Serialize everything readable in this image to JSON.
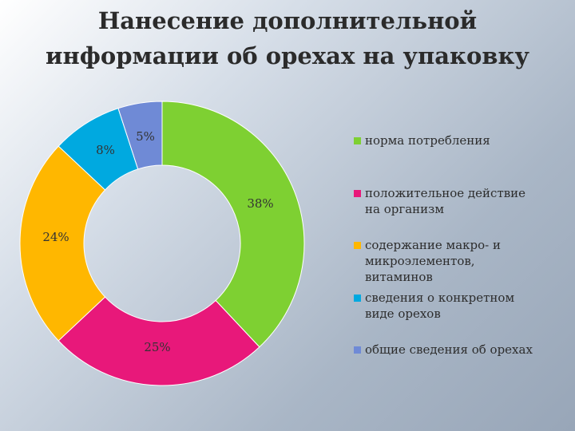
{
  "title": "Нанесение дополнительной\nинформации об орехах на упаковку",
  "chart_data": {
    "type": "pie",
    "donut": true,
    "title": "Нанесение дополнительной информации об орехах на упаковку",
    "legend_position": "right",
    "series": [
      {
        "name": "норма потребления",
        "value": 38,
        "label": "38%",
        "color": "#7ed032"
      },
      {
        "name": "положительное действие\nна организм",
        "value": 25,
        "label": "25%",
        "color": "#e8187a"
      },
      {
        "name": "содержание макро- и\nмикроэлементов,\nвитаминов",
        "value": 24,
        "label": "24%",
        "color": "#ffb700"
      },
      {
        "name": "сведения о конкретном\nвиде орехов",
        "value": 8,
        "label": "8%",
        "color": "#00a9e0"
      },
      {
        "name": "общие сведения об орехах",
        "value": 5,
        "label": "5%",
        "color": "#6f8ad6"
      }
    ]
  }
}
